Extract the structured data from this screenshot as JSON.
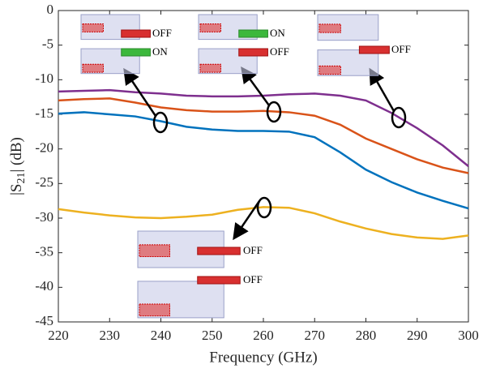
{
  "chart_data": {
    "type": "line",
    "x_label": "Frequency (GHz)",
    "y_label_parts": [
      "|S",
      "21",
      "| (dB)"
    ],
    "x": [
      220,
      225,
      230,
      235,
      240,
      245,
      250,
      255,
      260,
      265,
      270,
      275,
      280,
      285,
      290,
      295,
      300
    ],
    "series": [
      {
        "color": "#7e2f8e",
        "values": [
          -11.7,
          -11.6,
          -11.5,
          -11.8,
          -12.0,
          -12.3,
          -12.4,
          -12.4,
          -12.3,
          -12.1,
          -12.0,
          -12.3,
          -13.0,
          -14.8,
          -17.0,
          -19.5,
          -22.5
        ]
      },
      {
        "color": "#d95319",
        "values": [
          -13.0,
          -12.8,
          -12.7,
          -13.3,
          -14.0,
          -14.4,
          -14.6,
          -14.6,
          -14.5,
          -14.7,
          -15.2,
          -16.5,
          -18.5,
          -20.0,
          -21.5,
          -22.7,
          -23.5
        ]
      },
      {
        "color": "#0072bd",
        "values": [
          -14.9,
          -14.7,
          -15.0,
          -15.3,
          -16.0,
          -16.8,
          -17.2,
          -17.4,
          -17.4,
          -17.5,
          -18.3,
          -20.5,
          -23.0,
          -24.8,
          -26.3,
          -27.5,
          -28.6
        ]
      },
      {
        "color": "#edb120",
        "values": [
          -28.7,
          -29.2,
          -29.6,
          -29.9,
          -30.0,
          -29.8,
          -29.5,
          -28.8,
          -28.4,
          -28.5,
          -29.3,
          -30.5,
          -31.5,
          -32.3,
          -32.8,
          -33.0,
          -32.5
        ]
      }
    ],
    "xlim": [
      220,
      300
    ],
    "xticks": [
      220,
      230,
      240,
      250,
      260,
      270,
      280,
      290,
      300
    ],
    "ylim": [
      -45,
      0
    ],
    "yticks": [
      0,
      -5,
      -10,
      -15,
      -20,
      -25,
      -30,
      -35,
      -40,
      -45
    ],
    "grid": false,
    "annotations": [
      {
        "labels": [
          "OFF",
          "ON"
        ]
      },
      {
        "labels": [
          "ON",
          "OFF"
        ]
      },
      {
        "labels": [
          "OFF"
        ]
      },
      {
        "labels": [
          "OFF",
          "OFF"
        ]
      }
    ]
  }
}
